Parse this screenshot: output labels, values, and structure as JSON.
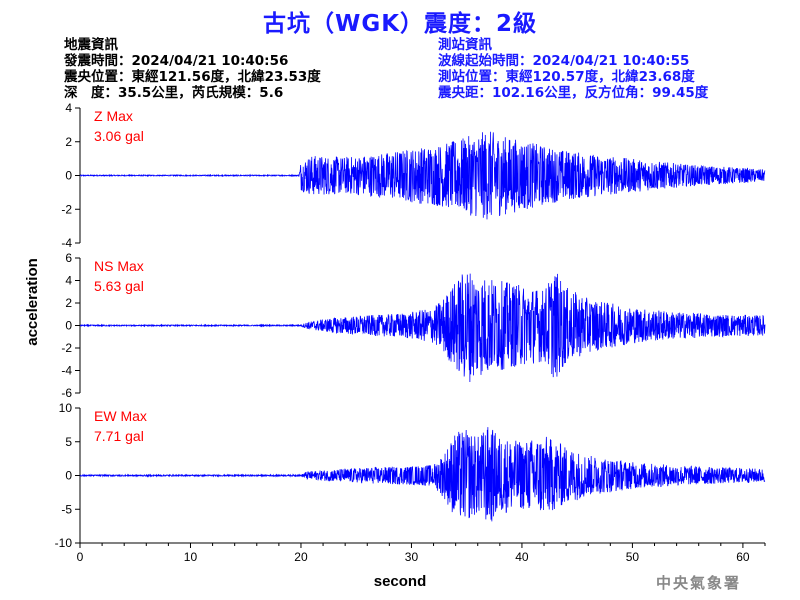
{
  "header": {
    "title": "古坑（WGK）震度：2級"
  },
  "event_info": {
    "heading": "地震資訊",
    "origin_time": "發震時間：2024/04/21 10:40:56",
    "epicenter": "震央位置：東經121.56度，北緯23.53度",
    "depth_mag": "深　度：35.5公里，芮氏規模：5.6"
  },
  "station_info": {
    "heading": "測站資訊",
    "wave_start": "波線起始時間：2024/04/21 10:40:55",
    "location": "測站位置：東經120.57度，北緯23.68度",
    "distance": "震央距：102.16公里，反方位角：99.45度"
  },
  "footer": {
    "agency": "中央氣象署"
  },
  "colors": {
    "trace": "#0000ff",
    "title": "#1a1aff",
    "max_label": "#ff0000",
    "agency": "#888888"
  },
  "chart_data": {
    "type": "line",
    "ylabel": "acceleration",
    "xlabel": "second",
    "x_range": [
      0,
      62
    ],
    "x_ticks": [
      0,
      10,
      20,
      30,
      40,
      50,
      60
    ],
    "grid": false,
    "panels": [
      {
        "name": "Z",
        "max_label": "Z Max",
        "max_value": "3.06 gal",
        "ylim": [
          -4,
          4
        ],
        "y_ticks": [
          4,
          2,
          0,
          -2,
          -4
        ],
        "envelope": [
          [
            0,
            0.03
          ],
          [
            19.8,
            0.03
          ],
          [
            20,
            0.9
          ],
          [
            21,
            1.2
          ],
          [
            24,
            1.1
          ],
          [
            27,
            1.3
          ],
          [
            30,
            1.6
          ],
          [
            33,
            1.9
          ],
          [
            35,
            2.3
          ],
          [
            37,
            2.7
          ],
          [
            38,
            2.4
          ],
          [
            40,
            2.1
          ],
          [
            43,
            1.6
          ],
          [
            46,
            1.3
          ],
          [
            50,
            1.0
          ],
          [
            55,
            0.65
          ],
          [
            60,
            0.45
          ],
          [
            62,
            0.35
          ]
        ]
      },
      {
        "name": "NS",
        "max_label": "NS Max",
        "max_value": "5.63 gal",
        "ylim": [
          -6,
          6
        ],
        "y_ticks": [
          6,
          4,
          2,
          0,
          -2,
          -4,
          -6
        ],
        "envelope": [
          [
            0,
            0.05
          ],
          [
            20,
            0.05
          ],
          [
            20.5,
            0.3
          ],
          [
            23,
            0.7
          ],
          [
            26,
            0.9
          ],
          [
            28,
            1.0
          ],
          [
            30,
            1.2
          ],
          [
            32,
            1.6
          ],
          [
            33,
            2.6
          ],
          [
            34,
            4.0
          ],
          [
            35,
            5.2
          ],
          [
            36,
            4.6
          ],
          [
            38,
            4.0
          ],
          [
            40,
            3.6
          ],
          [
            42,
            3.2
          ],
          [
            43,
            5.0
          ],
          [
            44,
            3.4
          ],
          [
            46,
            2.4
          ],
          [
            50,
            1.6
          ],
          [
            54,
            1.2
          ],
          [
            58,
            1.0
          ],
          [
            62,
            0.9
          ]
        ]
      },
      {
        "name": "EW",
        "max_label": "EW Max",
        "max_value": "7.71 gal",
        "ylim": [
          -10,
          10
        ],
        "y_ticks": [
          10,
          5,
          0,
          -5,
          -10
        ],
        "envelope": [
          [
            0,
            0.1
          ],
          [
            20,
            0.1
          ],
          [
            20.5,
            0.6
          ],
          [
            23,
            0.9
          ],
          [
            26,
            1.2
          ],
          [
            30,
            1.4
          ],
          [
            32,
            1.6
          ],
          [
            33,
            3.5
          ],
          [
            34,
            6.5
          ],
          [
            35,
            6.8
          ],
          [
            36,
            5.8
          ],
          [
            37,
            7.5
          ],
          [
            38,
            5.8
          ],
          [
            40,
            5.0
          ],
          [
            42,
            6.0
          ],
          [
            44,
            4.3
          ],
          [
            46,
            3.0
          ],
          [
            50,
            2.0
          ],
          [
            54,
            1.5
          ],
          [
            58,
            1.2
          ],
          [
            62,
            1.0
          ]
        ]
      }
    ]
  }
}
